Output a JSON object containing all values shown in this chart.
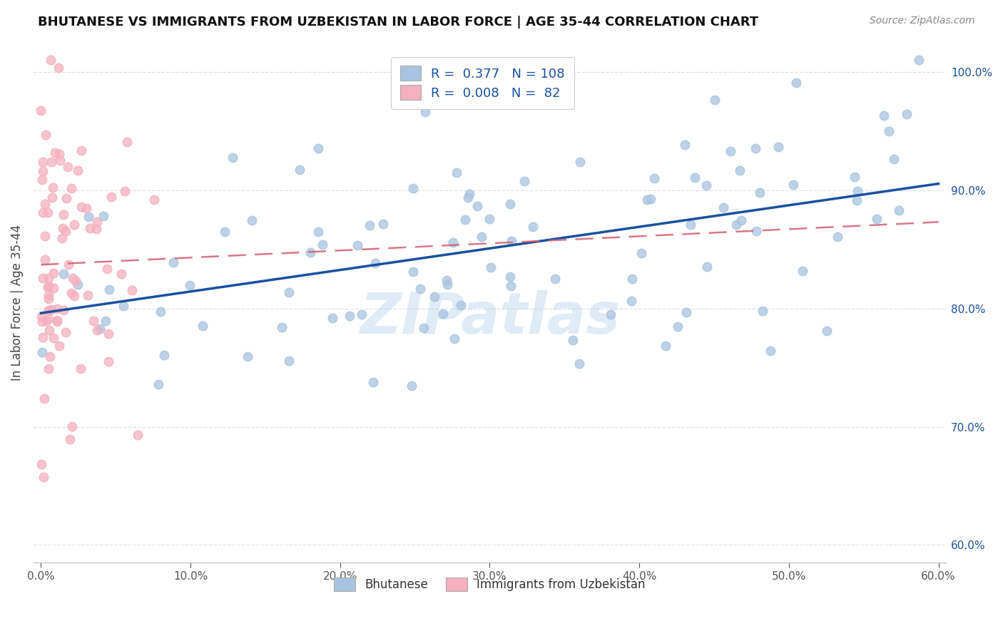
{
  "title": "BHUTANESE VS IMMIGRANTS FROM UZBEKISTAN IN LABOR FORCE | AGE 35-44 CORRELATION CHART",
  "source": "Source: ZipAtlas.com",
  "ylabel": "In Labor Force | Age 35-44",
  "xlim": [
    -0.005,
    0.605
  ],
  "ylim": [
    0.585,
    1.025
  ],
  "x_ticks": [
    0.0,
    0.1,
    0.2,
    0.3,
    0.4,
    0.5,
    0.6
  ],
  "x_tick_labels": [
    "0.0%",
    "10.0%",
    "20.0%",
    "30.0%",
    "40.0%",
    "50.0%",
    "60.0%"
  ],
  "y_ticks_right": [
    0.6,
    0.7,
    0.8,
    0.9,
    1.0
  ],
  "y_tick_labels_right": [
    "60.0%",
    "70.0%",
    "80.0%",
    "90.0%",
    "100.0%"
  ],
  "blue_R": 0.377,
  "blue_N": 108,
  "pink_R": 0.008,
  "pink_N": 82,
  "blue_color": "#a8c4e0",
  "blue_edge_color": "#85afd4",
  "blue_line_color": "#1a50a0",
  "pink_color": "#f4b0be",
  "pink_edge_color": "#e890a0",
  "pink_line_color": "#d06070",
  "legend_blue_label": "Bhutanese",
  "legend_pink_label": "Immigrants from Uzbekistan",
  "watermark": "ZIPatlas",
  "grid_color": "#dddddd",
  "title_color": "#111111",
  "source_color": "#888888",
  "ylabel_color": "#444444"
}
